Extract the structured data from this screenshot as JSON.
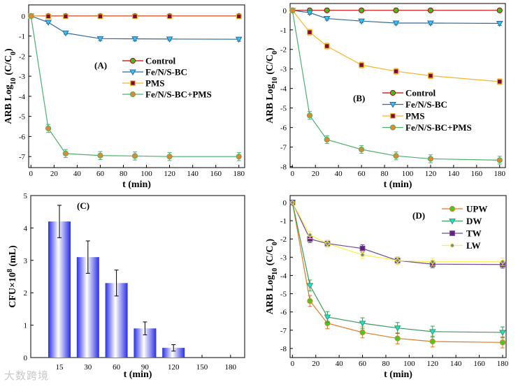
{
  "watermark": "大数跨境",
  "chart_data": [
    {
      "id": "A",
      "type": "line",
      "panel_label": "(A)",
      "xlabel": "t (min)",
      "ylabel": [
        {
          "t": "ARB Log"
        },
        {
          "t": "10",
          "sub": true
        },
        {
          "t": " (C/C"
        },
        {
          "t": "0",
          "sub": true
        },
        {
          "t": ")"
        }
      ],
      "xlim": [
        -2,
        185
      ],
      "ylim": [
        -7.55,
        0.55
      ],
      "xticks": [
        0,
        20,
        40,
        60,
        80,
        100,
        120,
        140,
        160,
        180
      ],
      "yticks": [
        0,
        -1,
        -2,
        -3,
        -4,
        -5,
        -6,
        -7
      ],
      "x": [
        0,
        15,
        30,
        60,
        90,
        120,
        180
      ],
      "legend_position": "center-right",
      "series": [
        {
          "name": "Control",
          "line": "#c00000",
          "marker": "circle",
          "fill": "#44bb22",
          "edge": "#c00000",
          "values": [
            0,
            0,
            0,
            0,
            0,
            0,
            0
          ],
          "err": [
            0,
            0.05,
            0.05,
            0.05,
            0.05,
            0.05,
            0.05
          ]
        },
        {
          "name": "Fe/N/S-BC",
          "line": "#2d6a9f",
          "marker": "tri-down",
          "fill": "#33c6f2",
          "edge": "#2d6a9f",
          "values": [
            0,
            -0.32,
            -0.85,
            -1.13,
            -1.14,
            -1.15,
            -1.16
          ],
          "err": [
            0,
            0.05,
            0.06,
            0.1,
            0.1,
            0.07,
            0.1
          ]
        },
        {
          "name": "PMS",
          "line": "#f5b52e",
          "marker": "square",
          "fill": "#7a0a3a",
          "edge": "#f5b52e",
          "values": [
            0,
            -0.02,
            -0.02,
            -0.02,
            -0.02,
            -0.02,
            -0.02
          ],
          "err": [
            0,
            0.05,
            0.05,
            0.05,
            0.05,
            0.05,
            0.05
          ]
        },
        {
          "name": "Fe/N/S-BC+PMS",
          "line": "#4caf6a",
          "marker": "circle",
          "fill": "#e0892c",
          "edge": "#4caf6a",
          "values": [
            0,
            -5.6,
            -6.85,
            -6.95,
            -6.97,
            -7.0,
            -7.0
          ],
          "err": [
            0,
            0.2,
            0.2,
            0.2,
            0.2,
            0.2,
            0.2
          ]
        }
      ]
    },
    {
      "id": "B",
      "type": "line",
      "panel_label": "(B)",
      "xlabel": "t (min)",
      "ylabel": [
        {
          "t": "ARB Log"
        },
        {
          "t": "10",
          "sub": true
        },
        {
          "t": " (C/C"
        },
        {
          "t": "0",
          "sub": true
        },
        {
          "t": ")"
        }
      ],
      "xlim": [
        -2,
        185
      ],
      "ylim": [
        -8.05,
        0.35
      ],
      "xticks": [
        0,
        20,
        40,
        60,
        80,
        100,
        120,
        140,
        160,
        180
      ],
      "yticks": [
        0,
        -1,
        -2,
        -3,
        -4,
        -5,
        -6,
        -7,
        -8
      ],
      "x": [
        0,
        15,
        30,
        60,
        90,
        120,
        180
      ],
      "legend_position": "center-right",
      "series": [
        {
          "name": "Control",
          "line": "#c00000",
          "marker": "circle",
          "fill": "#44bb22",
          "edge": "#c00000",
          "values": [
            0,
            0,
            0,
            0,
            0,
            0,
            0
          ],
          "err": [
            0,
            0,
            0,
            0,
            0,
            0,
            0
          ]
        },
        {
          "name": "Fe/N/S-BC",
          "line": "#2d6a9f",
          "marker": "tri-down",
          "fill": "#33c6f2",
          "edge": "#2d6a9f",
          "values": [
            0,
            -0.12,
            -0.42,
            -0.55,
            -0.65,
            -0.65,
            -0.67
          ],
          "err": [
            0,
            0.08,
            0.08,
            0.08,
            0.08,
            0.08,
            0.1
          ]
        },
        {
          "name": "PMS",
          "line": "#f5b52e",
          "marker": "square",
          "fill": "#7a0a3a",
          "edge": "#f5b52e",
          "values": [
            0,
            -1.12,
            -1.83,
            -2.8,
            -3.12,
            -3.35,
            -3.65
          ],
          "err": [
            0,
            0.15,
            0.15,
            0.15,
            0.15,
            0.15,
            0.15
          ]
        },
        {
          "name": "Fe/N/S-BC+PMS",
          "line": "#4caf6a",
          "marker": "circle",
          "fill": "#e0892c",
          "edge": "#4caf6a",
          "values": [
            0,
            -5.38,
            -6.62,
            -7.12,
            -7.45,
            -7.6,
            -7.67
          ],
          "err": [
            0,
            0.2,
            0.2,
            0.2,
            0.2,
            0.2,
            0.2
          ]
        }
      ]
    },
    {
      "id": "C",
      "type": "bar",
      "panel_label": "(C)",
      "xlabel": "t (min)",
      "ylabel": [
        {
          "t": "CFU×10"
        },
        {
          "t": "8",
          "sup": true
        },
        {
          "t": " (mL)"
        }
      ],
      "ylim": [
        0,
        5
      ],
      "yticks": [
        0,
        1,
        2,
        3,
        4,
        5
      ],
      "categories": [
        "15",
        "30",
        "60",
        "90",
        "120",
        "150",
        "180"
      ],
      "values": [
        4.2,
        3.1,
        2.3,
        0.9,
        0.3,
        0,
        0
      ],
      "err": [
        0.5,
        0.5,
        0.4,
        0.2,
        0.1,
        0,
        0
      ],
      "bar_color": "#2a2ee6"
    },
    {
      "id": "D",
      "type": "line",
      "panel_label": "(D)",
      "xlabel": "t (min)",
      "ylabel": [
        {
          "t": "ARB Log"
        },
        {
          "t": "10",
          "sub": true
        },
        {
          "t": " (C/C"
        },
        {
          "t": "0",
          "sub": true
        },
        {
          "t": ")"
        }
      ],
      "xlim": [
        -2,
        183
      ],
      "ylim": [
        -8.5,
        0.38
      ],
      "xticks": [
        0,
        20,
        40,
        60,
        80,
        100,
        120,
        140,
        160,
        180
      ],
      "yticks": [
        0,
        -1,
        -2,
        -3,
        -4,
        -5,
        -6,
        -7,
        -8
      ],
      "x": [
        0,
        15,
        30,
        60,
        90,
        120,
        180
      ],
      "legend_position": "top-right",
      "series": [
        {
          "name": "UPW",
          "line": "#e07b25",
          "marker": "circle",
          "fill": "#44cc22",
          "edge": "#e07b25",
          "values": [
            0,
            -5.4,
            -6.62,
            -7.12,
            -7.45,
            -7.62,
            -7.67
          ],
          "err": [
            0,
            0.3,
            0.3,
            0.3,
            0.3,
            0.3,
            0.3
          ]
        },
        {
          "name": "DW",
          "line": "#3a9a5a",
          "marker": "tri-down",
          "fill": "#22dddd",
          "edge": "#3a9a5a",
          "values": [
            0,
            -4.55,
            -6.28,
            -6.62,
            -6.88,
            -7.08,
            -7.12
          ],
          "err": [
            0,
            0.3,
            0.3,
            0.3,
            0.3,
            0.3,
            0.3
          ]
        },
        {
          "name": "TW",
          "line": "#6a4c93",
          "marker": "square",
          "fill": "#6a1a7a",
          "edge": "#6a4c93",
          "values": [
            0,
            -2.0,
            -2.25,
            -2.52,
            -3.18,
            -3.38,
            -3.4
          ],
          "err": [
            0,
            0.2,
            0.2,
            0.2,
            0.2,
            0.2,
            0.2
          ]
        },
        {
          "name": "LW",
          "line": "#ffee44",
          "marker": "dot",
          "fill": "#6a8aa0",
          "edge": "#ffee44",
          "values": [
            0,
            -1.78,
            -2.25,
            -2.87,
            -3.18,
            -3.25,
            -3.25
          ],
          "err": [
            0,
            0.2,
            0.2,
            0.2,
            0.2,
            0.2,
            0.2
          ]
        }
      ]
    }
  ]
}
